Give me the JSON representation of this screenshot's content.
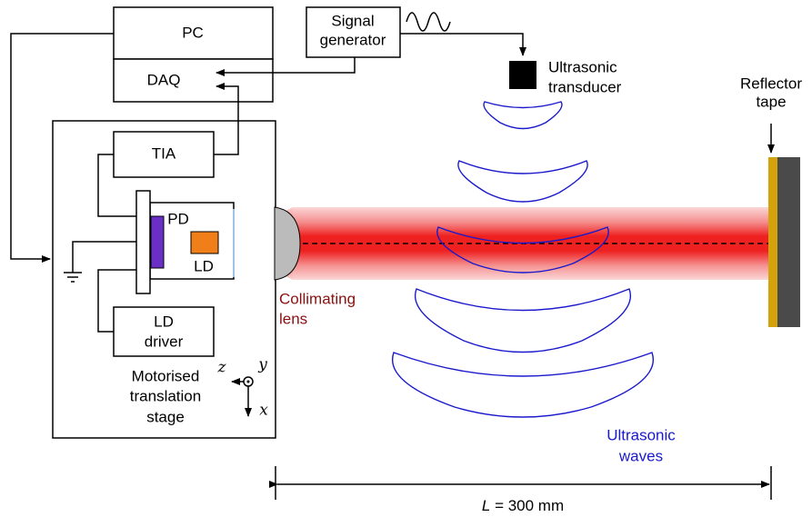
{
  "blocks": {
    "pc": "PC",
    "daq": "DAQ",
    "tia": "TIA",
    "ld_driver": [
      "LD",
      "driver"
    ],
    "signal_generator": [
      "Signal",
      "generator"
    ],
    "pd": "PD",
    "ld": "LD"
  },
  "labels": {
    "ultrasonic_transducer": [
      "Ultrasonic",
      "transducer"
    ],
    "reflector_tape": [
      "Reflector",
      "tape"
    ],
    "collimating_lens": [
      "Collimating",
      "lens"
    ],
    "ultrasonic_waves": [
      "Ultrasonic",
      "waves"
    ],
    "stage": [
      "Motorised",
      "translation",
      "stage"
    ],
    "axes": {
      "z": "z",
      "y": "y",
      "x": "x"
    },
    "distance": {
      "symbol": "L",
      "value": "= 300 mm"
    }
  }
}
